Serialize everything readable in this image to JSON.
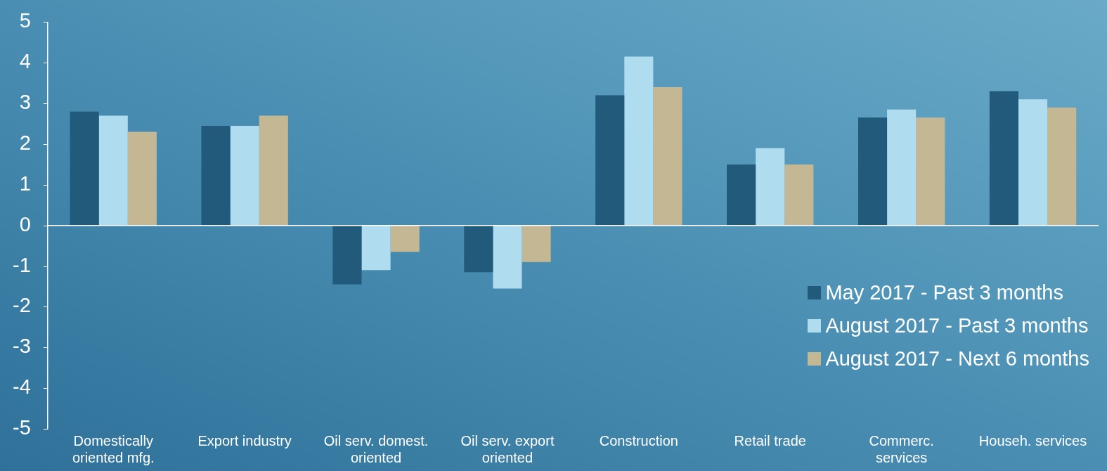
{
  "chart_data": {
    "type": "bar",
    "categories": [
      "Domestically oriented mfg.",
      "Export industry",
      "Oil serv. domest. oriented",
      "Oil serv. export oriented",
      "Construction",
      "Retail trade",
      "Commerc. services",
      "Househ. services"
    ],
    "series": [
      {
        "name": "May 2017 - Past 3 months",
        "color": "#215a7a",
        "values": [
          2.8,
          2.45,
          -1.45,
          -1.15,
          3.2,
          1.5,
          2.65,
          3.3
        ]
      },
      {
        "name": "August 2017 - Past 3 months",
        "color": "#b0dcef",
        "values": [
          2.7,
          2.45,
          -1.1,
          -1.55,
          4.15,
          1.9,
          2.85,
          3.1
        ]
      },
      {
        "name": "August 2017 - Next 6 months",
        "color": "#c4b894",
        "values": [
          2.3,
          2.7,
          -0.65,
          -0.9,
          3.4,
          1.5,
          2.65,
          2.9
        ]
      }
    ],
    "ylim": [
      -5,
      5
    ],
    "yticks": [
      -5,
      -4,
      -3,
      -2,
      -1,
      0,
      1,
      2,
      3,
      4,
      5
    ],
    "grid": false,
    "ref_lines": [
      {
        "axis": "y",
        "value": 0,
        "color": "#ffffff"
      }
    ],
    "legend": "bottom right"
  }
}
